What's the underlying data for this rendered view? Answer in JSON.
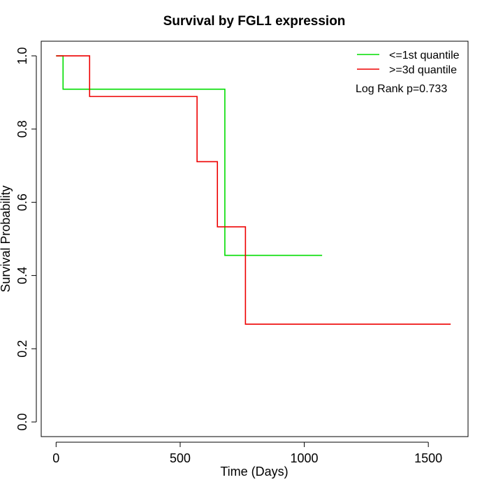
{
  "chart_data": {
    "type": "line",
    "title": "Survival by FGL1 expression",
    "xlabel": "Time (Days)",
    "ylabel": "Survival Probability",
    "xlim": [
      -60,
      1660
    ],
    "ylim": [
      -0.04,
      1.04
    ],
    "xticks": [
      0,
      500,
      1000,
      1500
    ],
    "yticks": [
      0.0,
      0.2,
      0.4,
      0.6,
      0.8,
      1.0
    ],
    "xtick_labels": [
      "0",
      "500",
      "1000",
      "1500"
    ],
    "ytick_labels": [
      "0.0",
      "0.2",
      "0.4",
      "0.6",
      "0.8",
      "1.0"
    ],
    "grid": false,
    "legend_position": "top-right",
    "annotation": "Log Rank p=0.733",
    "series": [
      {
        "name": "<=1st quantile",
        "color": "#00dd00",
        "step": true,
        "x": [
          0,
          28,
          680,
          1072
        ],
        "y": [
          1.0,
          0.909,
          0.455,
          0.455
        ]
      },
      {
        "name": ">=3d quantile",
        "color": "#ee0000",
        "step": true,
        "x": [
          0,
          135,
          568,
          650,
          763,
          1590
        ],
        "y": [
          1.0,
          0.889,
          0.711,
          0.533,
          0.267,
          0.267
        ]
      }
    ]
  }
}
